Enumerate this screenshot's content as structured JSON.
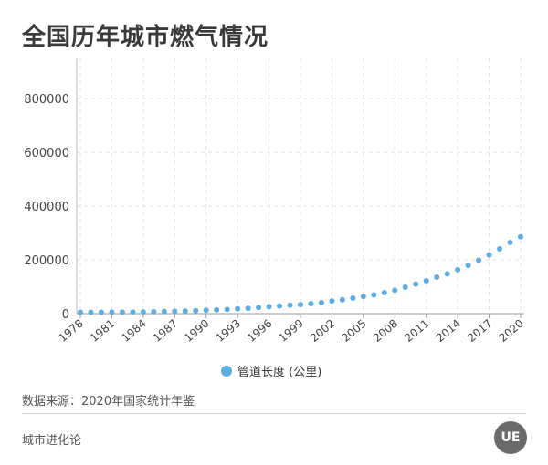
{
  "title": "全国历年城市燃气情况",
  "source": "数据来源：2020年国家统计年鉴",
  "footer": "城市进化论",
  "logo_text": "UE",
  "chart_data": {
    "type": "scatter",
    "xlabel": "",
    "ylabel": "",
    "ylim": [
      0,
      950000
    ],
    "xlim": [
      1978,
      2020
    ],
    "y_ticks": [
      0,
      200000,
      400000,
      600000,
      800000
    ],
    "x_ticks": [
      1978,
      1981,
      1984,
      1987,
      1990,
      1993,
      1996,
      1999,
      2002,
      2005,
      2008,
      2011,
      2014,
      2017,
      2020
    ],
    "grid": true,
    "legend_position": "bottom",
    "point_color": "#5DADE2",
    "series": [
      {
        "name": "管道长度 (公里)",
        "x": [
          1978,
          1979,
          1980,
          1981,
          1982,
          1983,
          1984,
          1985,
          1986,
          1987,
          1988,
          1989,
          1990,
          1991,
          1992,
          1993,
          1994,
          1995,
          1996,
          1997,
          1998,
          1999,
          2000,
          2001,
          2002,
          2003,
          2004,
          2005,
          2006,
          2007,
          2008,
          2009,
          2010,
          2011,
          2012,
          2013,
          2014,
          2015,
          2016,
          2017,
          2018,
          2019,
          2020
        ],
        "y": [
          4717,
          4815,
          5100,
          5389,
          5590,
          5913,
          6341,
          6996,
          7600,
          8700,
          9900,
          11100,
          12900,
          14200,
          15900,
          17900,
          20100,
          23100,
          25700,
          28500,
          31300,
          33600,
          37100,
          41300,
          47100,
          51700,
          57700,
          63500,
          70000,
          78100,
          87100,
          98400,
          109700,
          122000,
          135700,
          148200,
          163400,
          179500,
          198400,
          218600,
          241000,
          264500,
          286000
        ]
      }
    ]
  }
}
